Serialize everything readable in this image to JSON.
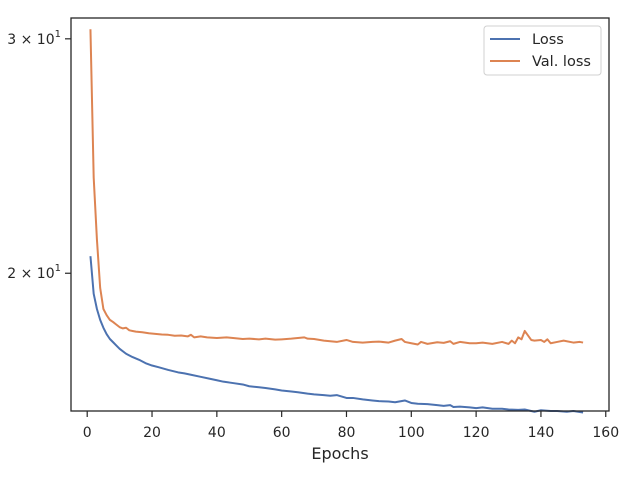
{
  "chart_data": {
    "type": "line",
    "title": "",
    "xlabel": "Epochs",
    "ylabel": "",
    "xlim": [
      -5,
      161
    ],
    "ylim": [
      15.76,
      31.1
    ],
    "yscale": "log",
    "grid": false,
    "legend_position": "top-right",
    "x_ticks": [
      0,
      20,
      40,
      60,
      80,
      100,
      120,
      140,
      160
    ],
    "x_tick_labels": [
      "0",
      "20",
      "40",
      "60",
      "80",
      "100",
      "120",
      "140",
      "160"
    ],
    "y_ticks": [
      20,
      30
    ],
    "y_tick_labels": [
      {
        "base": "2 × 10",
        "exp": "1"
      },
      {
        "base": "3 × 10",
        "exp": "1"
      }
    ],
    "colors": {
      "loss": "#4c72b0",
      "val_loss": "#dd8452"
    },
    "series": [
      {
        "name": "Loss",
        "x": [
          1,
          2,
          3,
          4,
          5,
          6,
          7,
          8,
          9,
          10,
          12,
          14,
          16,
          18,
          20,
          22,
          25,
          28,
          30,
          32,
          35,
          38,
          40,
          42,
          45,
          48,
          50,
          53,
          55,
          58,
          60,
          63,
          65,
          68,
          70,
          73,
          75,
          77,
          80,
          82,
          85,
          88,
          90,
          93,
          95,
          98,
          100,
          102,
          105,
          108,
          110,
          112,
          113,
          115,
          118,
          120,
          122,
          125,
          128,
          130,
          133,
          135,
          138,
          140,
          143,
          145,
          148,
          150,
          153
        ],
        "y": [
          20.6,
          19.3,
          18.8,
          18.45,
          18.2,
          18.0,
          17.85,
          17.75,
          17.65,
          17.55,
          17.4,
          17.3,
          17.22,
          17.12,
          17.05,
          17.0,
          16.92,
          16.85,
          16.82,
          16.78,
          16.72,
          16.66,
          16.62,
          16.58,
          16.54,
          16.5,
          16.45,
          16.42,
          16.4,
          16.36,
          16.33,
          16.3,
          16.28,
          16.24,
          16.22,
          16.2,
          16.18,
          16.2,
          16.12,
          16.12,
          16.08,
          16.05,
          16.03,
          16.02,
          16.0,
          16.05,
          15.98,
          15.96,
          15.95,
          15.92,
          15.9,
          15.92,
          15.87,
          15.88,
          15.86,
          15.84,
          15.86,
          15.82,
          15.82,
          15.8,
          15.79,
          15.8,
          15.74,
          15.78,
          15.76,
          15.76,
          15.74,
          15.76,
          15.72
        ]
      },
      {
        "name": "Val. loss",
        "x": [
          1,
          2,
          3,
          4,
          5,
          6,
          7,
          8,
          9,
          10,
          11,
          12,
          13,
          14,
          15,
          17,
          19,
          21,
          23,
          25,
          27,
          29,
          31,
          32,
          33,
          35,
          37,
          40,
          43,
          45,
          48,
          50,
          53,
          55,
          58,
          60,
          63,
          65,
          67,
          68,
          70,
          73,
          75,
          77,
          80,
          82,
          85,
          88,
          90,
          93,
          95,
          97,
          98,
          100,
          102,
          103,
          105,
          108,
          110,
          112,
          113,
          115,
          118,
          120,
          122,
          125,
          128,
          130,
          131,
          132,
          133,
          134,
          135,
          137,
          138,
          140,
          141,
          142,
          143,
          145,
          147,
          150,
          152,
          153
        ],
        "y": [
          30.5,
          23.6,
          21.2,
          19.5,
          18.8,
          18.6,
          18.45,
          18.38,
          18.3,
          18.22,
          18.18,
          18.2,
          18.12,
          18.1,
          18.08,
          18.06,
          18.03,
          18.01,
          17.99,
          17.98,
          17.95,
          17.96,
          17.93,
          17.98,
          17.9,
          17.93,
          17.9,
          17.88,
          17.9,
          17.88,
          17.85,
          17.86,
          17.84,
          17.86,
          17.83,
          17.84,
          17.86,
          17.88,
          17.9,
          17.86,
          17.85,
          17.8,
          17.78,
          17.76,
          17.82,
          17.76,
          17.74,
          17.76,
          17.77,
          17.74,
          17.8,
          17.85,
          17.76,
          17.72,
          17.68,
          17.76,
          17.7,
          17.75,
          17.73,
          17.78,
          17.7,
          17.76,
          17.72,
          17.72,
          17.74,
          17.7,
          17.76,
          17.7,
          17.8,
          17.72,
          17.9,
          17.84,
          18.1,
          17.82,
          17.8,
          17.82,
          17.76,
          17.84,
          17.72,
          17.76,
          17.8,
          17.74,
          17.76,
          17.74
        ]
      }
    ]
  }
}
